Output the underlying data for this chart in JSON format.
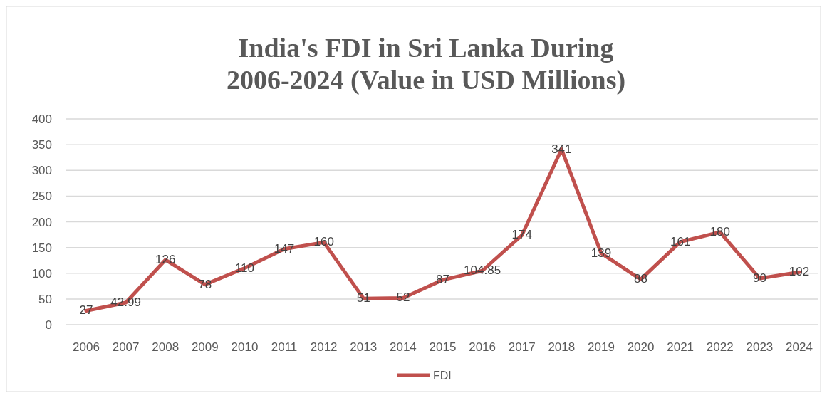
{
  "chart_data": {
    "type": "line",
    "title": "India's FDI in Sri Lanka During\n2006-2024 (Value in USD Millions)",
    "categories": [
      "2006",
      "2007",
      "2008",
      "2009",
      "2010",
      "2011",
      "2012",
      "2013",
      "2014",
      "2015",
      "2016",
      "2017",
      "2018",
      "2019",
      "2020",
      "2021",
      "2022",
      "2023",
      "2024"
    ],
    "series": [
      {
        "name": "FDI",
        "color": "#c0504d",
        "values": [
          27,
          42.99,
          126,
          78,
          110,
          147,
          160,
          51,
          52,
          87,
          104.85,
          174,
          341,
          139,
          88,
          161,
          180,
          90,
          102
        ]
      }
    ],
    "ylim": [
      0,
      400
    ],
    "yticks": [
      0,
      50,
      100,
      150,
      200,
      250,
      300,
      350,
      400
    ],
    "grid": "y",
    "legend": "bottom",
    "data_labels": true,
    "marker": "none",
    "line_style": "solid"
  }
}
